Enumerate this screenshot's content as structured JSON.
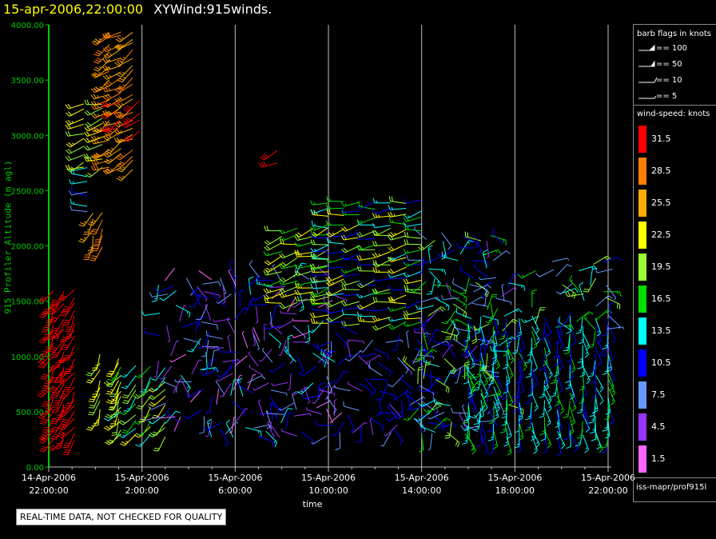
{
  "title": {
    "time": "15-apr-2006,22:00:00",
    "text": "XYWind:915winds."
  },
  "qc_note": "REAL-TIME DATA, NOT CHECKED FOR QUALITY",
  "source_label": "iss-mapr/prof915l",
  "legend": {
    "barb_title": "barb flags in knots",
    "barb_entries": [
      "== 100",
      "== 50",
      "== 10",
      "== 5"
    ],
    "speed_title": "wind-speed: knots",
    "speed_bins": [
      {
        "label": "31.5",
        "color": "#ff0000"
      },
      {
        "label": "28.5",
        "color": "#ff8000"
      },
      {
        "label": "25.5",
        "color": "#ffaa00"
      },
      {
        "label": "22.5",
        "color": "#ffff00"
      },
      {
        "label": "19.5",
        "color": "#99ff33"
      },
      {
        "label": "16.5",
        "color": "#00dd00"
      },
      {
        "label": "13.5",
        "color": "#00ffff"
      },
      {
        "label": "10.5",
        "color": "#0000ff"
      },
      {
        "label": "7.5",
        "color": "#6699ff"
      },
      {
        "label": "4.5",
        "color": "#9933ff"
      },
      {
        "label": "1.5",
        "color": "#ff66ff"
      }
    ]
  },
  "chart_data": {
    "type": "scatter",
    "title": "XYWind:915winds.",
    "xlabel": "time",
    "ylabel": "915 Profiler Altitude (m agl)",
    "ylim": [
      0,
      4000
    ],
    "xlim_hours": [
      0,
      24
    ],
    "grid": "vertical",
    "y_ticks": [
      "0.00",
      "500.00",
      "1000.00",
      "1500.00",
      "2000.00",
      "2500.00",
      "3000.00",
      "3500.00",
      "4000.00"
    ],
    "y_tick_values": [
      0,
      500,
      1000,
      1500,
      2000,
      2500,
      3000,
      3500,
      4000
    ],
    "x_ticks": [
      {
        "hour": 0,
        "date": "14-Apr-2006",
        "time": "22:00:00"
      },
      {
        "hour": 4,
        "date": "15-Apr-2006",
        "time": "2:00:00"
      },
      {
        "hour": 8,
        "date": "15-Apr-2006",
        "time": "6:00:00"
      },
      {
        "hour": 12,
        "date": "15-Apr-2006",
        "time": "10:00:00"
      },
      {
        "hour": 16,
        "date": "15-Apr-2006",
        "time": "14:00:00"
      },
      {
        "hour": 20,
        "date": "15-Apr-2006",
        "time": "18:00:00"
      },
      {
        "hour": 24,
        "date": "15-Apr-2006",
        "time": "22:00:00"
      }
    ],
    "regions": [
      {
        "t0": 0.2,
        "t1": 1.1,
        "alt0": 250,
        "alt1": 1600,
        "cols": 3,
        "dir": 210,
        "speed": [
          30,
          33
        ]
      },
      {
        "t0": 1.9,
        "t1": 2.3,
        "alt0": 2000,
        "alt1": 2300,
        "cols": 2,
        "dir": 200,
        "speed": [
          24,
          30
        ]
      },
      {
        "t0": 1.5,
        "t1": 1.8,
        "alt0": 2300,
        "alt1": 2700,
        "cols": 1,
        "dir": 270,
        "speed": [
          8,
          14
        ]
      },
      {
        "t0": 1.5,
        "t1": 2.3,
        "alt0": 2700,
        "alt1": 3300,
        "cols": 2,
        "dir": 250,
        "speed": [
          18,
          24
        ]
      },
      {
        "t0": 2.6,
        "t1": 3.6,
        "alt0": 2700,
        "alt1": 3950,
        "cols": 3,
        "dir": 240,
        "speed": [
          24,
          30
        ]
      },
      {
        "t0": 3.0,
        "t1": 3.9,
        "alt0": 3050,
        "alt1": 3300,
        "cols": 2,
        "dir": 240,
        "speed": [
          30,
          33
        ]
      },
      {
        "t0": 2.2,
        "t1": 3.0,
        "alt0": 450,
        "alt1": 1000,
        "cols": 2,
        "dir": 200,
        "speed": [
          20,
          24
        ]
      },
      {
        "t0": 3.1,
        "t1": 5.0,
        "alt0": 280,
        "alt1": 900,
        "cols": 4,
        "dir": 215,
        "speed": [
          12,
          24
        ]
      },
      {
        "t0": 5.0,
        "t1": 12.0,
        "alt0": 280,
        "alt1": 1700,
        "cols": 12,
        "dir": -1,
        "speed": [
          2,
          14
        ]
      },
      {
        "t0": 10.0,
        "t1": 12.0,
        "alt0": 1500,
        "alt1": 2150,
        "cols": 4,
        "dir": 255,
        "speed": [
          15,
          24
        ]
      },
      {
        "t0": 9.6,
        "t1": 10.0,
        "alt0": 2750,
        "alt1": 2880,
        "cols": 1,
        "dir": 240,
        "speed": [
          30,
          33
        ]
      },
      {
        "t0": 12.0,
        "t1": 16.0,
        "alt0": 1300,
        "alt1": 2400,
        "cols": 7,
        "dir": 260,
        "speed": [
          9,
          24
        ]
      },
      {
        "t0": 12.0,
        "t1": 16.5,
        "alt0": 300,
        "alt1": 1200,
        "cols": 8,
        "dir": -1,
        "speed": [
          3,
          12
        ]
      },
      {
        "t0": 16.0,
        "t1": 19.5,
        "alt0": 300,
        "alt1": 2100,
        "cols": 7,
        "dir": -1,
        "speed": [
          5,
          20
        ]
      },
      {
        "t0": 18.0,
        "t1": 24.0,
        "alt0": 280,
        "alt1": 1350,
        "cols": 12,
        "dir": 170,
        "speed": [
          10,
          17
        ]
      },
      {
        "t0": 21.0,
        "t1": 24.0,
        "alt0": 1250,
        "alt1": 1850,
        "cols": 5,
        "dir": -1,
        "speed": [
          6,
          20
        ]
      }
    ]
  }
}
